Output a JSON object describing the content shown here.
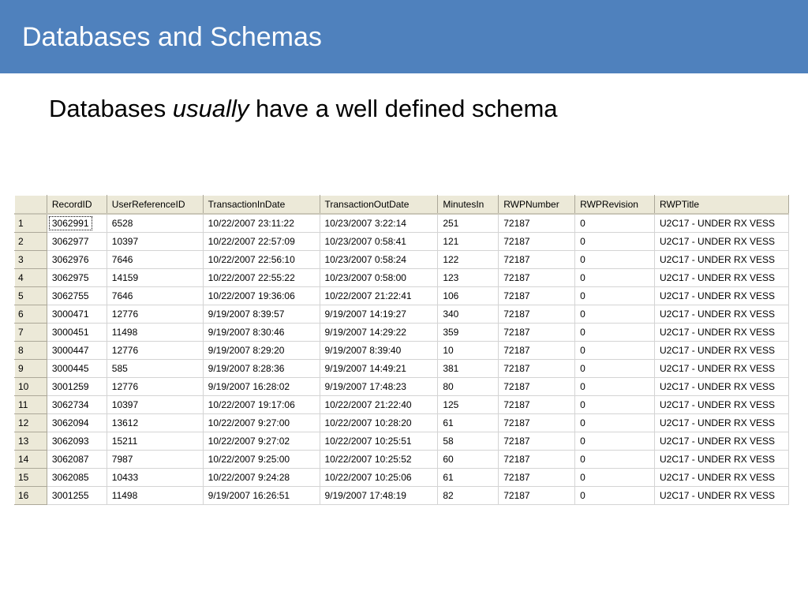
{
  "slide": {
    "title": "Databases and Schemas",
    "subtitle_pre": "Databases ",
    "subtitle_em": "usually",
    "subtitle_post": " have a well defined schema"
  },
  "grid": {
    "columns": [
      "RecordID",
      "UserReferenceID",
      "TransactionInDate",
      "TransactionOutDate",
      "MinutesIn",
      "RWPNumber",
      "RWPRevision",
      "RWPTitle"
    ],
    "rows": [
      [
        "1",
        "3062991",
        "6528",
        "10/22/2007 23:11:22",
        "10/23/2007 3:22:14",
        "251",
        "72187",
        "0",
        "U2C17 - UNDER RX VESS"
      ],
      [
        "2",
        "3062977",
        "10397",
        "10/22/2007 22:57:09",
        "10/23/2007 0:58:41",
        "121",
        "72187",
        "0",
        "U2C17 - UNDER RX VESS"
      ],
      [
        "3",
        "3062976",
        "7646",
        "10/22/2007 22:56:10",
        "10/23/2007 0:58:24",
        "122",
        "72187",
        "0",
        "U2C17 - UNDER RX VESS"
      ],
      [
        "4",
        "3062975",
        "14159",
        "10/22/2007 22:55:22",
        "10/23/2007 0:58:00",
        "123",
        "72187",
        "0",
        "U2C17 - UNDER RX VESS"
      ],
      [
        "5",
        "3062755",
        "7646",
        "10/22/2007 19:36:06",
        "10/22/2007 21:22:41",
        "106",
        "72187",
        "0",
        "U2C17 - UNDER RX VESS"
      ],
      [
        "6",
        "3000471",
        "12776",
        "9/19/2007 8:39:57",
        "9/19/2007 14:19:27",
        "340",
        "72187",
        "0",
        "U2C17 - UNDER RX VESS"
      ],
      [
        "7",
        "3000451",
        "11498",
        "9/19/2007 8:30:46",
        "9/19/2007 14:29:22",
        "359",
        "72187",
        "0",
        "U2C17 - UNDER RX VESS"
      ],
      [
        "8",
        "3000447",
        "12776",
        "9/19/2007 8:29:20",
        "9/19/2007 8:39:40",
        "10",
        "72187",
        "0",
        "U2C17 - UNDER RX VESS"
      ],
      [
        "9",
        "3000445",
        "585",
        "9/19/2007 8:28:36",
        "9/19/2007 14:49:21",
        "381",
        "72187",
        "0",
        "U2C17 - UNDER RX VESS"
      ],
      [
        "10",
        "3001259",
        "12776",
        "9/19/2007 16:28:02",
        "9/19/2007 17:48:23",
        "80",
        "72187",
        "0",
        "U2C17 - UNDER RX VESS"
      ],
      [
        "11",
        "3062734",
        "10397",
        "10/22/2007 19:17:06",
        "10/22/2007 21:22:40",
        "125",
        "72187",
        "0",
        "U2C17 - UNDER RX VESS"
      ],
      [
        "12",
        "3062094",
        "13612",
        "10/22/2007 9:27:00",
        "10/22/2007 10:28:20",
        "61",
        "72187",
        "0",
        "U2C17 - UNDER RX VESS"
      ],
      [
        "13",
        "3062093",
        "15211",
        "10/22/2007 9:27:02",
        "10/22/2007 10:25:51",
        "58",
        "72187",
        "0",
        "U2C17 - UNDER RX VESS"
      ],
      [
        "14",
        "3062087",
        "7987",
        "10/22/2007 9:25:00",
        "10/22/2007 10:25:52",
        "60",
        "72187",
        "0",
        "U2C17 - UNDER RX VESS"
      ],
      [
        "15",
        "3062085",
        "10433",
        "10/22/2007 9:24:28",
        "10/22/2007 10:25:06",
        "61",
        "72187",
        "0",
        "U2C17 - UNDER RX VESS"
      ],
      [
        "16",
        "3001255",
        "11498",
        "9/19/2007 16:26:51",
        "9/19/2007 17:48:19",
        "82",
        "72187",
        "0",
        "U2C17 - UNDER RX VESS"
      ]
    ]
  }
}
